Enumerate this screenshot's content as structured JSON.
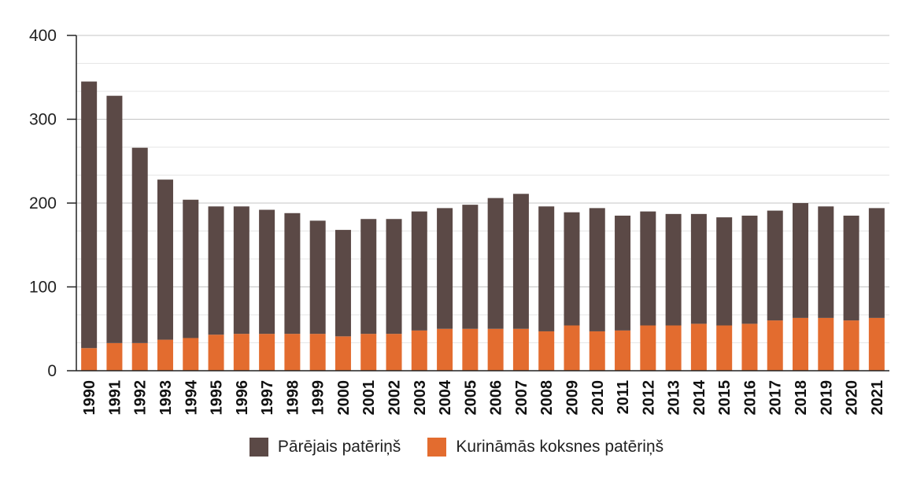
{
  "chart_data": {
    "type": "bar",
    "stacked": true,
    "categories": [
      "1990",
      "1991",
      "1992",
      "1993",
      "1994",
      "1995",
      "1996",
      "1997",
      "1998",
      "1999",
      "2000",
      "2001",
      "2002",
      "2003",
      "2004",
      "2005",
      "2006",
      "2007",
      "2008",
      "2009",
      "2010",
      "2011",
      "2012",
      "2013",
      "2014",
      "2015",
      "2016",
      "2017",
      "2018",
      "2019",
      "2020",
      "2021"
    ],
    "series": [
      {
        "name": "Kurināmās koksnes patēriņš",
        "color": "#e36c2f",
        "values": [
          27,
          33,
          33,
          37,
          39,
          43,
          44,
          44,
          44,
          44,
          41,
          44,
          44,
          48,
          50,
          50,
          50,
          50,
          47,
          54,
          47,
          48,
          54,
          54,
          56,
          54,
          56,
          60,
          63,
          63,
          60,
          63
        ]
      },
      {
        "name": "Pārējais patēriņš",
        "color": "#5b4946",
        "values": [
          318,
          295,
          233,
          191,
          165,
          153,
          152,
          148,
          144,
          135,
          127,
          137,
          137,
          142,
          144,
          148,
          156,
          161,
          149,
          135,
          147,
          137,
          136,
          133,
          131,
          129,
          129,
          131,
          137,
          133,
          125,
          131
        ]
      }
    ],
    "legend_order": [
      "Pārējais patēriņš",
      "Kurināmās koksnes patēriņš"
    ],
    "ylim": [
      0,
      400
    ],
    "yticks": [
      0,
      100,
      200,
      300,
      400
    ],
    "minor_grid_step": 33.333,
    "grid": true,
    "legend_position": "bottom",
    "title": "",
    "xlabel": "",
    "ylabel": ""
  }
}
